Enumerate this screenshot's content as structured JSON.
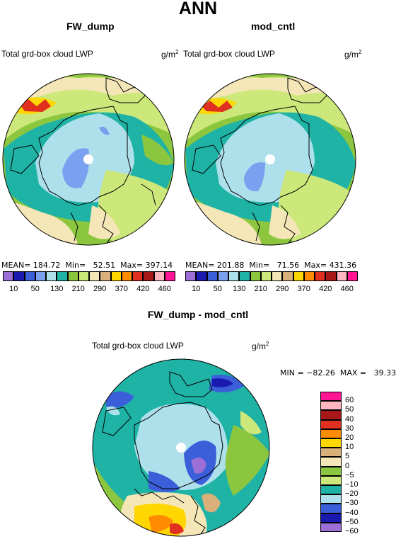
{
  "page_title": "ANN",
  "panels": [
    {
      "title": "FW_dump",
      "variable": "Total grd-box cloud LWP",
      "units_base": "g/m",
      "units_exp": "2",
      "stats": {
        "mean_label": "MEAN=",
        "mean": "184.72",
        "min_label": "Min=",
        "min": "52.51",
        "max_label": "Max=",
        "max": "397.14"
      }
    },
    {
      "title": "mod_cntl",
      "variable": "Total grd-box cloud LWP",
      "units_base": "g/m",
      "units_exp": "2",
      "stats": {
        "mean_label": "MEAN=",
        "mean": "201.88",
        "min_label": "Min=",
        "min": "71.56",
        "max_label": "Max=",
        "max": "431.36"
      }
    }
  ],
  "top_colorbar": {
    "labels": [
      "10",
      "50",
      "130",
      "210",
      "290",
      "370",
      "420",
      "460"
    ],
    "colors": [
      "#9b6fd6",
      "#1a1ab0",
      "#3a5fd8",
      "#7aa0f0",
      "#aee0ec",
      "#1fb3a6",
      "#8cc63f",
      "#cce87a",
      "#f5e6b8",
      "#d9b07a",
      "#ffd700",
      "#ff8c00",
      "#e03020",
      "#a81818",
      "#ffb6c1",
      "#ff1493"
    ]
  },
  "diff_panel": {
    "title": "FW_dump - mod_cntl",
    "variable": "Total grd-box cloud LWP",
    "units_base": "g/m",
    "units_exp": "2",
    "stats": "MIN = −82.26  MAX =   39.33"
  },
  "diff_colorbar": {
    "labels": [
      "60",
      "50",
      "40",
      "30",
      "20",
      "10",
      "5",
      "0",
      "−5",
      "−10",
      "−20",
      "−30",
      "−40",
      "−50",
      "−60"
    ],
    "colors": [
      "#ff1493",
      "#ffb6c1",
      "#a81818",
      "#e03020",
      "#ff8c00",
      "#ffd700",
      "#d9b07a",
      "#f5e6b8",
      "#8cc63f",
      "#cce87a",
      "#1fb3a6",
      "#aee0ec",
      "#3a5fd8",
      "#1a1ab0",
      "#9b6fd6"
    ]
  },
  "palette": {
    "pale_blue": "#aee0ec",
    "teal": "#1fb3a6",
    "green": "#8cc63f",
    "light_green": "#cce87a",
    "beige": "#f5e6b8",
    "tan": "#d9b07a",
    "yellow": "#ffd700",
    "orange": "#ff8c00",
    "red": "#e03020",
    "blue": "#3a5fd8",
    "mid_blue": "#7aa0f0",
    "purple": "#9b6fd6",
    "dark_blue": "#1a1ab0"
  }
}
